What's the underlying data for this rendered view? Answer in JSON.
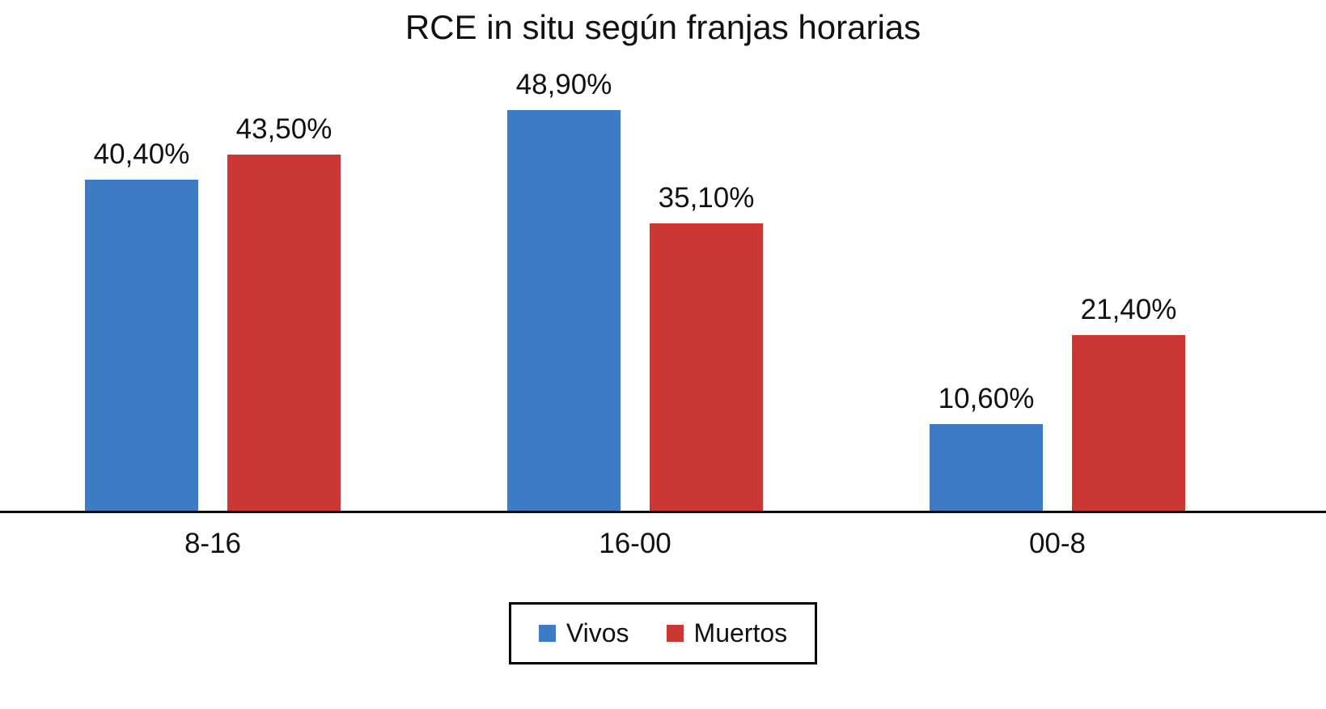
{
  "chart_data": {
    "type": "bar",
    "title": "RCE in situ según franjas horarias",
    "categories": [
      "8-16",
      "16-00",
      "00-8"
    ],
    "series": [
      {
        "name": "Vivos",
        "color": "#3C7CC4",
        "values": [
          40.4,
          48.9,
          10.6
        ],
        "labels": [
          "40,40%",
          "48,90%",
          "10,60%"
        ]
      },
      {
        "name": "Muertos",
        "color": "#CB3834",
        "values": [
          43.5,
          35.1,
          21.4
        ],
        "labels": [
          "43,50%",
          "35,10%",
          "21,40%"
        ]
      }
    ],
    "xlabel": "",
    "ylabel": "",
    "ylim": [
      0,
      55
    ],
    "grid": false,
    "y_axis_visible": false,
    "data_labels": true,
    "legend_position": "bottom",
    "axis_line_color": "#0a0a0a"
  }
}
